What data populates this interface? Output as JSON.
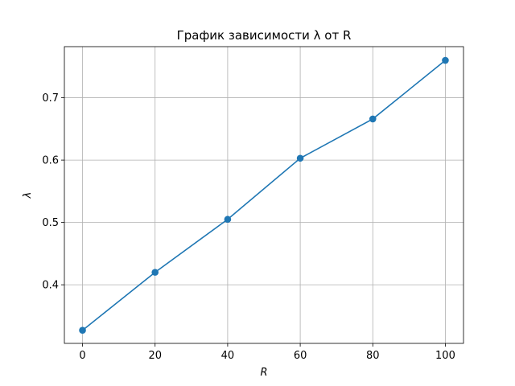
{
  "chart_data": {
    "type": "line",
    "title": "График зависимости λ от R",
    "xlabel": "R",
    "ylabel": "λ",
    "x": [
      0,
      20,
      40,
      60,
      80,
      100
    ],
    "series": [
      {
        "values": [
          0.327,
          0.42,
          0.505,
          0.603,
          0.666,
          0.76
        ],
        "color": "#1f77b4",
        "marker": "circle"
      }
    ],
    "xlim": [
      -5,
      105
    ],
    "ylim": [
      0.306,
      0.782
    ],
    "xticks": [
      0,
      20,
      40,
      60,
      80,
      100
    ],
    "xtick_labels": [
      "0",
      "20",
      "40",
      "60",
      "80",
      "100"
    ],
    "yticks": [
      0.4,
      0.5,
      0.6,
      0.7
    ],
    "ytick_labels": [
      "0.4",
      "0.5",
      "0.6",
      "0.7"
    ],
    "grid": true
  }
}
